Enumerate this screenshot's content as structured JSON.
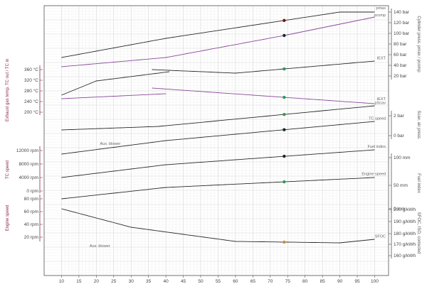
{
  "chart_data": {
    "type": "line",
    "x": {
      "min": 0,
      "max": 100,
      "ticks": [
        10,
        15,
        20,
        25,
        30,
        35,
        40,
        45,
        50,
        55,
        60,
        65,
        70,
        75,
        80,
        85,
        90,
        95,
        100
      ],
      "label": ""
    },
    "grid": true,
    "marker_x": 74,
    "left_axes": [
      {
        "name": "exhaust-temp-axis",
        "label": "Exhaust gas temp. TC out / TC in",
        "ticks": [
          "360 °C",
          "320 °C",
          "280 °C",
          "240 °C",
          "200 °C"
        ]
      },
      {
        "name": "tc-speed-axis",
        "label": "TC speed",
        "ticks": [
          "12000 rpm",
          "8000 rpm",
          "4000 rpm",
          "0 rpm"
        ]
      },
      {
        "name": "engine-speed-axis",
        "label": "Engine speed",
        "ticks": [
          "80 rpm",
          "60 rpm",
          "40 rpm",
          "20 rpm"
        ]
      }
    ],
    "right_axes": [
      {
        "name": "pressure-axis",
        "label": "Cylinder press. pmax / pcomp",
        "ticks": [
          "140 bar",
          "120 bar",
          "100 bar",
          "80 bar",
          "60 bar",
          "40 bar",
          "20 bar"
        ]
      },
      {
        "name": "scav-axis",
        "label": "Scav. air press.",
        "ticks": [
          "2 bar",
          "0 bar"
        ]
      },
      {
        "name": "fuel-index-axis",
        "label": "Fuel index",
        "ticks": [
          "100 mm",
          "50 mm",
          "0 mm"
        ]
      },
      {
        "name": "sfoc-axis",
        "label": "SFOC, ISO, corrected",
        "ticks": [
          "200 g/kWh",
          "190 g/kWh",
          "180 g/kWh",
          "170 g/kWh",
          "160 g/kWh"
        ]
      }
    ],
    "series": [
      {
        "name": "pmax",
        "color": "#2a2a2a",
        "segments": [
          [
            [
              10,
              36.5
            ],
            [
              40,
              23
            ],
            [
              90,
              4.5
            ],
            [
              100,
              4.5
            ]
          ]
        ],
        "dot": {
          "color": "#7a1010"
        }
      },
      {
        "name": "pcomp",
        "color": "#8a4a9a",
        "segments": [
          [
            [
              10,
              43
            ],
            [
              40,
              36.5
            ],
            [
              74,
              21
            ],
            [
              100,
              8
            ]
          ]
        ],
        "dot": {
          "color": "#1a2a2a"
        }
      },
      {
        "name": "tEXT",
        "color": "#2a2a2a",
        "segments": [
          [
            [
              10,
              63
            ],
            [
              20,
              53
            ],
            [
              41,
              46.5
            ]
          ],
          [
            [
              36,
              45
            ],
            [
              60,
              47.5
            ],
            [
              100,
              39
            ]
          ]
        ],
        "dot": {
          "color": "#2a9a5a"
        }
      },
      {
        "name": "tEXT",
        "color": "#8a4a9a",
        "segments": [
          [
            [
              10,
              65.5
            ],
            [
              40,
              62
            ]
          ],
          [
            [
              36,
              58
            ],
            [
              100,
              69
            ]
          ]
        ],
        "dot": {
          "color": "#2a9a5a"
        }
      },
      {
        "name": "pScav",
        "color": "#2a2a2a",
        "segments": [
          [
            [
              10,
              87.5
            ],
            [
              38,
              85
            ],
            [
              100,
              70.5
            ]
          ]
        ],
        "dot": {
          "color": "#2a9a5a"
        }
      },
      {
        "name": "TC speed",
        "color": "#2a2a2a",
        "segments": [
          [
            [
              10,
              104.5
            ],
            [
              40,
              95
            ],
            [
              100,
              81.5
            ]
          ]
        ],
        "dot": {
          "color": "#1a2a2a"
        }
      },
      {
        "name": "Fuel index",
        "color": "#2a2a2a",
        "segments": [
          [
            [
              10,
              121
            ],
            [
              40,
              112
            ],
            [
              100,
              101.5
            ]
          ]
        ],
        "dot": {
          "color": "#1a2a2a"
        }
      },
      {
        "name": "Engine speed",
        "color": "#2a2a2a",
        "segments": [
          [
            [
              10,
              136
            ],
            [
              40,
              128
            ],
            [
              100,
              121
            ]
          ]
        ],
        "dot": {
          "color": "#2a9a5a"
        }
      },
      {
        "name": "SFOC",
        "color": "#2a2a2a",
        "segments": [
          [
            [
              10,
              143
            ],
            [
              30,
              156
            ],
            [
              60,
              166
            ],
            [
              90,
              167
            ],
            [
              100,
              164.5
            ]
          ]
        ],
        "dot": {
          "color": "#d08a3a"
        }
      }
    ],
    "annotations": [
      "Aux. blower",
      "Aux. blower"
    ]
  }
}
